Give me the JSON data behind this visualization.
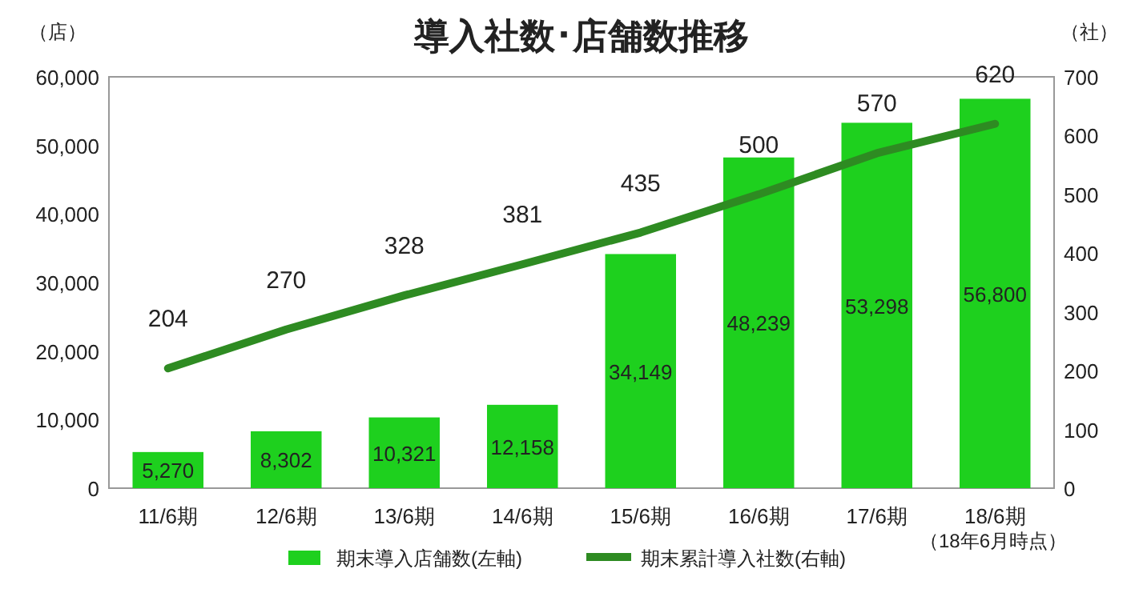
{
  "chart_data": {
    "type": "bar",
    "title": "導入社数･店舗数推移",
    "ylabel": "（店）",
    "y2label": "（社）",
    "categories": [
      "11/6期",
      "12/6期",
      "13/6期",
      "14/6期",
      "15/6期",
      "16/6期",
      "17/6期",
      "18/6期"
    ],
    "series": [
      {
        "name": "期末導入店舗数(左軸)",
        "color": "#1ed01e",
        "values": [
          5270,
          8302,
          10321,
          12158,
          34149,
          48239,
          53298,
          56800
        ],
        "value_labels": [
          "5,270",
          "8,302",
          "10,321",
          "12,158",
          "34,149",
          "48,239",
          "53,298",
          "56,800"
        ]
      },
      {
        "name": "期末累計導入社数(右軸)",
        "type": "line",
        "axis": "y2",
        "color": "#2e8b22",
        "values": [
          204,
          270,
          328,
          381,
          435,
          500,
          570,
          620
        ]
      }
    ],
    "ylim": [
      0,
      60000
    ],
    "yticks": [
      0,
      {
        "value": 10000,
        "label": "10,000"
      },
      {
        "value": 20000,
        "label": "20,000"
      },
      {
        "value": 30000,
        "label": "30,000"
      },
      {
        "value": 40000,
        "label": "40,000"
      },
      {
        "value": 50000,
        "label": "50,000"
      },
      {
        "value": 60000,
        "label": "60,000"
      }
    ],
    "y2lim": [
      0,
      700
    ],
    "y2ticks": [
      0,
      100,
      200,
      300,
      400,
      500,
      600,
      700
    ],
    "data_labels": true,
    "grid": false,
    "legend": "bottom",
    "marker": "none",
    "line_style": "solid",
    "annotations": [
      "（18年6月時点）"
    ]
  }
}
